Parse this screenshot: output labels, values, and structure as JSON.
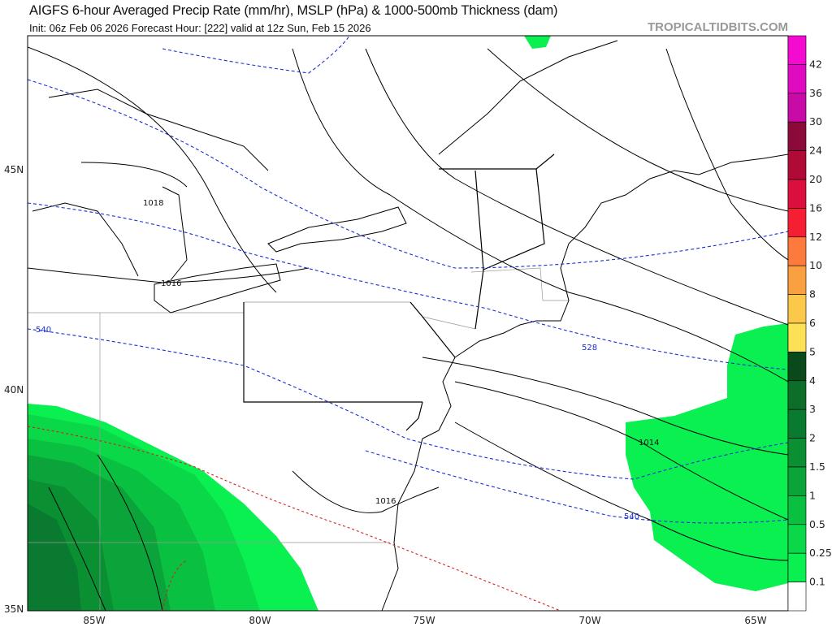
{
  "header": {
    "title": "AIGFS 6-hour Averaged Precip Rate (mm/hr), MSLP (hPa) & 1000-500mb Thickness (dam)",
    "subtitle": "Init: 06z Feb 06 2026   Forecast Hour: [222]   valid at 12z Sun, Feb 15 2026",
    "brand": "TROPICALTIDBITS.COM"
  },
  "map": {
    "region": "Northeastern United States",
    "lat_labels": [
      "45N",
      "40N",
      "35N"
    ],
    "lon_labels": [
      "85W",
      "80W",
      "75W",
      "70W",
      "65W"
    ],
    "isobar_labels": [
      "1018",
      "1016",
      "1014",
      "1016"
    ],
    "thickness_labels": [
      "540",
      "528",
      "540"
    ],
    "colors": {
      "isobar": "#000000",
      "thickness_cold": "#1a2fd6",
      "thickness_warm": "#d42020",
      "borders": "#888888"
    }
  },
  "colorbar": {
    "labels": [
      "42",
      "36",
      "30",
      "24",
      "20",
      "16",
      "12",
      "10",
      "8",
      "6",
      "5",
      "4",
      "3",
      "2",
      "1.5",
      "1",
      "0.5",
      "0.25",
      "0.1"
    ],
    "colors": [
      "#f50ad2",
      "#e00bc0",
      "#c80aa6",
      "#8c0a3a",
      "#b00a36",
      "#dc0f3c",
      "#f51e32",
      "#fb7a3c",
      "#fba040",
      "#fbc84a",
      "#fde154",
      "#0a4a1a",
      "#0d6e2a",
      "#0a7a30",
      "#0a9032",
      "#0aa43a",
      "#0ac040",
      "#0ad848",
      "#0af050",
      "#ffffff"
    ]
  }
}
